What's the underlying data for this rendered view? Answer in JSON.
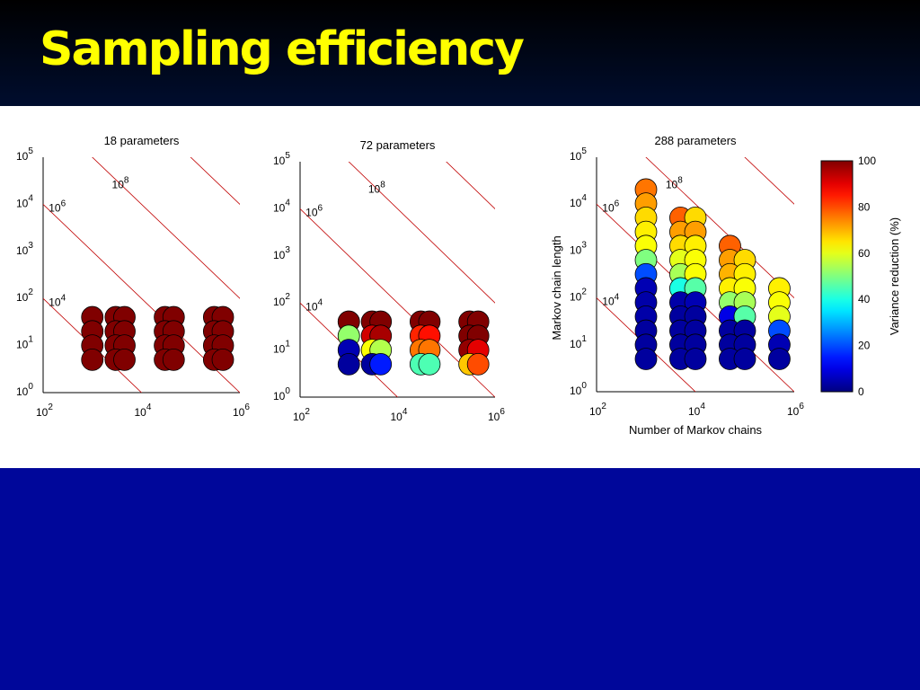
{
  "slide": {
    "title": "Sampling efficiency",
    "background_color": "#00079a",
    "title_color": "#ffff00"
  },
  "chart_data": [
    {
      "type": "scatter",
      "title": "18 parameters",
      "xlabel": "",
      "ylabel": "",
      "x_scale": "log",
      "y_scale": "log",
      "xlim": [
        100,
        1000000
      ],
      "ylim": [
        1,
        100000
      ],
      "x_ticks": [
        {
          "value": 100,
          "base": "10",
          "exp": "2"
        },
        {
          "value": 10000,
          "base": "10",
          "exp": "4"
        },
        {
          "value": 1000000,
          "base": "10",
          "exp": "6"
        }
      ],
      "y_ticks": [
        {
          "value": 1,
          "base": "10",
          "exp": "0"
        },
        {
          "value": 10,
          "base": "10",
          "exp": "1"
        },
        {
          "value": 100,
          "base": "10",
          "exp": "2"
        },
        {
          "value": 1000,
          "base": "10",
          "exp": "3"
        },
        {
          "value": 10000,
          "base": "10",
          "exp": "4"
        },
        {
          "value": 100000,
          "base": "10",
          "exp": "5"
        }
      ],
      "iso_lines": [
        {
          "product": 10000,
          "label_base": "10",
          "label_exp": "4",
          "label_at": [
            130,
            70
          ]
        },
        {
          "product": 1000000,
          "label_base": "10",
          "label_exp": "6",
          "label_at": [
            130,
            7000
          ]
        },
        {
          "product": 100000000,
          "label_base": "10",
          "label_exp": "8",
          "label_at": [
            2500,
            22000
          ]
        },
        {
          "product": 10000000000,
          "label_base": "",
          "label_exp": "",
          "label_at": null
        }
      ],
      "points": [
        {
          "x": 1000,
          "y": 5,
          "value": 100
        },
        {
          "x": 1000,
          "y": 10,
          "value": 100
        },
        {
          "x": 1000,
          "y": 20,
          "value": 100
        },
        {
          "x": 1000,
          "y": 40,
          "value": 100
        },
        {
          "x": 3000,
          "y": 5,
          "value": 100
        },
        {
          "x": 3000,
          "y": 10,
          "value": 100
        },
        {
          "x": 3000,
          "y": 20,
          "value": 100
        },
        {
          "x": 3000,
          "y": 40,
          "value": 100
        },
        {
          "x": 4500,
          "y": 5,
          "value": 100
        },
        {
          "x": 4500,
          "y": 10,
          "value": 100
        },
        {
          "x": 4500,
          "y": 20,
          "value": 100
        },
        {
          "x": 4500,
          "y": 40,
          "value": 100
        },
        {
          "x": 30000,
          "y": 5,
          "value": 100
        },
        {
          "x": 30000,
          "y": 10,
          "value": 100
        },
        {
          "x": 30000,
          "y": 20,
          "value": 100
        },
        {
          "x": 30000,
          "y": 40,
          "value": 100
        },
        {
          "x": 45000,
          "y": 5,
          "value": 100
        },
        {
          "x": 45000,
          "y": 10,
          "value": 100
        },
        {
          "x": 45000,
          "y": 20,
          "value": 100
        },
        {
          "x": 45000,
          "y": 40,
          "value": 100
        },
        {
          "x": 300000,
          "y": 5,
          "value": 100
        },
        {
          "x": 300000,
          "y": 10,
          "value": 100
        },
        {
          "x": 300000,
          "y": 20,
          "value": 100
        },
        {
          "x": 300000,
          "y": 40,
          "value": 100
        },
        {
          "x": 450000,
          "y": 5,
          "value": 100
        },
        {
          "x": 450000,
          "y": 10,
          "value": 100
        },
        {
          "x": 450000,
          "y": 20,
          "value": 100
        },
        {
          "x": 450000,
          "y": 40,
          "value": 100
        }
      ]
    },
    {
      "type": "scatter",
      "title": "72 parameters",
      "xlabel": "",
      "ylabel": "",
      "x_scale": "log",
      "y_scale": "log",
      "xlim": [
        100,
        1000000
      ],
      "ylim": [
        1,
        100000
      ],
      "x_ticks": [
        {
          "value": 100,
          "base": "10",
          "exp": "2"
        },
        {
          "value": 10000,
          "base": "10",
          "exp": "4"
        },
        {
          "value": 1000000,
          "base": "10",
          "exp": "6"
        }
      ],
      "y_ticks": [
        {
          "value": 1,
          "base": "10",
          "exp": "0"
        },
        {
          "value": 10,
          "base": "10",
          "exp": "1"
        },
        {
          "value": 100,
          "base": "10",
          "exp": "2"
        },
        {
          "value": 1000,
          "base": "10",
          "exp": "3"
        },
        {
          "value": 10000,
          "base": "10",
          "exp": "4"
        },
        {
          "value": 100000,
          "base": "10",
          "exp": "5"
        }
      ],
      "iso_lines": [
        {
          "product": 10000,
          "label_base": "10",
          "label_exp": "4",
          "label_at": [
            130,
            70
          ]
        },
        {
          "product": 1000000,
          "label_base": "10",
          "label_exp": "6",
          "label_at": [
            130,
            7000
          ]
        },
        {
          "product": 100000000,
          "label_base": "10",
          "label_exp": "8",
          "label_at": [
            2500,
            22000
          ]
        },
        {
          "product": 10000000000,
          "label_base": "",
          "label_exp": "",
          "label_at": null
        }
      ],
      "points": [
        {
          "x": 1000,
          "y": 5,
          "value": 3
        },
        {
          "x": 1000,
          "y": 10,
          "value": 5
        },
        {
          "x": 1000,
          "y": 20,
          "value": 52
        },
        {
          "x": 1000,
          "y": 40,
          "value": 100
        },
        {
          "x": 3000,
          "y": 5,
          "value": 3
        },
        {
          "x": 3000,
          "y": 10,
          "value": 62
        },
        {
          "x": 3000,
          "y": 20,
          "value": 92
        },
        {
          "x": 3000,
          "y": 40,
          "value": 100
        },
        {
          "x": 4500,
          "y": 5,
          "value": 15
        },
        {
          "x": 4500,
          "y": 10,
          "value": 55
        },
        {
          "x": 4500,
          "y": 20,
          "value": 96
        },
        {
          "x": 4500,
          "y": 40,
          "value": 100
        },
        {
          "x": 30000,
          "y": 5,
          "value": 45
        },
        {
          "x": 30000,
          "y": 10,
          "value": 76
        },
        {
          "x": 30000,
          "y": 20,
          "value": 84
        },
        {
          "x": 30000,
          "y": 40,
          "value": 100
        },
        {
          "x": 45000,
          "y": 5,
          "value": 45
        },
        {
          "x": 45000,
          "y": 10,
          "value": 76
        },
        {
          "x": 45000,
          "y": 20,
          "value": 86
        },
        {
          "x": 45000,
          "y": 40,
          "value": 100
        },
        {
          "x": 300000,
          "y": 5,
          "value": 68
        },
        {
          "x": 300000,
          "y": 10,
          "value": 98
        },
        {
          "x": 300000,
          "y": 20,
          "value": 100
        },
        {
          "x": 300000,
          "y": 40,
          "value": 100
        },
        {
          "x": 450000,
          "y": 5,
          "value": 80
        },
        {
          "x": 450000,
          "y": 10,
          "value": 90
        },
        {
          "x": 450000,
          "y": 20,
          "value": 100
        },
        {
          "x": 450000,
          "y": 40,
          "value": 100
        }
      ]
    },
    {
      "type": "scatter",
      "title": "288 parameters",
      "xlabel": "Number of Markov chains",
      "ylabel": "Markov chain length",
      "x_scale": "log",
      "y_scale": "log",
      "xlim": [
        100,
        1000000
      ],
      "ylim": [
        1,
        100000
      ],
      "x_ticks": [
        {
          "value": 100,
          "base": "10",
          "exp": "2"
        },
        {
          "value": 10000,
          "base": "10",
          "exp": "4"
        },
        {
          "value": 1000000,
          "base": "10",
          "exp": "6"
        }
      ],
      "y_ticks": [
        {
          "value": 1,
          "base": "10",
          "exp": "0"
        },
        {
          "value": 10,
          "base": "10",
          "exp": "1"
        },
        {
          "value": 100,
          "base": "10",
          "exp": "2"
        },
        {
          "value": 1000,
          "base": "10",
          "exp": "3"
        },
        {
          "value": 10000,
          "base": "10",
          "exp": "4"
        },
        {
          "value": 100000,
          "base": "10",
          "exp": "5"
        }
      ],
      "iso_lines": [
        {
          "product": 10000,
          "label_base": "10",
          "label_exp": "4",
          "label_at": [
            130,
            70
          ]
        },
        {
          "product": 1000000,
          "label_base": "10",
          "label_exp": "6",
          "label_at": [
            130,
            7000
          ]
        },
        {
          "product": 100000000,
          "label_base": "10",
          "label_exp": "8",
          "label_at": [
            2500,
            22000
          ]
        },
        {
          "product": 10000000000,
          "label_base": "",
          "label_exp": "",
          "label_at": null
        }
      ],
      "points": [
        {
          "x": 1000,
          "y": 5,
          "value": 3
        },
        {
          "x": 1000,
          "y": 10,
          "value": 3
        },
        {
          "x": 1000,
          "y": 20,
          "value": 3
        },
        {
          "x": 1000,
          "y": 40,
          "value": 4
        },
        {
          "x": 1000,
          "y": 80,
          "value": 4
        },
        {
          "x": 1000,
          "y": 160,
          "value": 5
        },
        {
          "x": 1000,
          "y": 320,
          "value": 20
        },
        {
          "x": 1000,
          "y": 640,
          "value": 50
        },
        {
          "x": 1000,
          "y": 1280,
          "value": 62
        },
        {
          "x": 1000,
          "y": 2560,
          "value": 64
        },
        {
          "x": 1000,
          "y": 5120,
          "value": 66
        },
        {
          "x": 1000,
          "y": 10240,
          "value": 72
        },
        {
          "x": 1000,
          "y": 20480,
          "value": 76
        },
        {
          "x": 5000,
          "y": 5,
          "value": 3
        },
        {
          "x": 5000,
          "y": 10,
          "value": 3
        },
        {
          "x": 5000,
          "y": 20,
          "value": 3
        },
        {
          "x": 5000,
          "y": 40,
          "value": 3
        },
        {
          "x": 5000,
          "y": 80,
          "value": 4
        },
        {
          "x": 5000,
          "y": 160,
          "value": 40
        },
        {
          "x": 5000,
          "y": 320,
          "value": 54
        },
        {
          "x": 5000,
          "y": 640,
          "value": 60
        },
        {
          "x": 5000,
          "y": 1280,
          "value": 66
        },
        {
          "x": 5000,
          "y": 2560,
          "value": 72
        },
        {
          "x": 5000,
          "y": 5120,
          "value": 78
        },
        {
          "x": 10000,
          "y": 5,
          "value": 3
        },
        {
          "x": 10000,
          "y": 10,
          "value": 3
        },
        {
          "x": 10000,
          "y": 20,
          "value": 3
        },
        {
          "x": 10000,
          "y": 40,
          "value": 3
        },
        {
          "x": 10000,
          "y": 80,
          "value": 5
        },
        {
          "x": 10000,
          "y": 160,
          "value": 46
        },
        {
          "x": 10000,
          "y": 320,
          "value": 62
        },
        {
          "x": 10000,
          "y": 640,
          "value": 62
        },
        {
          "x": 10000,
          "y": 1280,
          "value": 64
        },
        {
          "x": 10000,
          "y": 2560,
          "value": 72
        },
        {
          "x": 10000,
          "y": 5120,
          "value": 66
        },
        {
          "x": 50000,
          "y": 5,
          "value": 3
        },
        {
          "x": 50000,
          "y": 10,
          "value": 3
        },
        {
          "x": 50000,
          "y": 20,
          "value": 3
        },
        {
          "x": 50000,
          "y": 40,
          "value": 10
        },
        {
          "x": 50000,
          "y": 80,
          "value": 52
        },
        {
          "x": 50000,
          "y": 160,
          "value": 64
        },
        {
          "x": 50000,
          "y": 320,
          "value": 70
        },
        {
          "x": 50000,
          "y": 640,
          "value": 72
        },
        {
          "x": 50000,
          "y": 1280,
          "value": 78
        },
        {
          "x": 100000,
          "y": 5,
          "value": 3
        },
        {
          "x": 100000,
          "y": 10,
          "value": 3
        },
        {
          "x": 100000,
          "y": 20,
          "value": 3
        },
        {
          "x": 100000,
          "y": 40,
          "value": 46
        },
        {
          "x": 100000,
          "y": 80,
          "value": 54
        },
        {
          "x": 100000,
          "y": 160,
          "value": 62
        },
        {
          "x": 100000,
          "y": 320,
          "value": 64
        },
        {
          "x": 100000,
          "y": 640,
          "value": 66
        },
        {
          "x": 500000,
          "y": 5,
          "value": 3
        },
        {
          "x": 500000,
          "y": 10,
          "value": 5
        },
        {
          "x": 500000,
          "y": 20,
          "value": 20
        },
        {
          "x": 500000,
          "y": 40,
          "value": 60
        },
        {
          "x": 500000,
          "y": 80,
          "value": 62
        },
        {
          "x": 500000,
          "y": 160,
          "value": 64
        }
      ]
    }
  ],
  "colorbar": {
    "label": "Variance reduction (%)",
    "min": 0,
    "max": 100,
    "ticks": [
      0,
      20,
      40,
      60,
      80,
      100
    ],
    "colormap": "jet"
  }
}
